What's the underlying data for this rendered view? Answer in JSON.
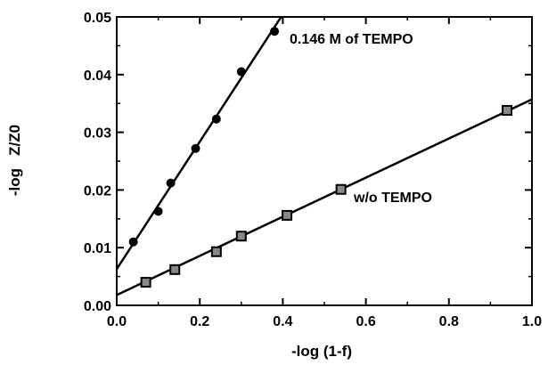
{
  "chart_data": {
    "type": "scatter",
    "xlabel": "-log (1-f)",
    "ylabel": "-log   Z/Z0",
    "xlim": [
      0.0,
      1.0
    ],
    "ylim": [
      0.0,
      0.05
    ],
    "xticks": [
      "0.0",
      "0.2",
      "0.4",
      "0.6",
      "0.8",
      "1.0"
    ],
    "yticks": [
      "0.00",
      "0.01",
      "0.02",
      "0.03",
      "0.04",
      "0.05"
    ],
    "grid": false,
    "series": [
      {
        "name": "0.146 M of TEMPO",
        "marker": "circle",
        "x": [
          0.04,
          0.1,
          0.13,
          0.19,
          0.24,
          0.3,
          0.38
        ],
        "y": [
          0.011,
          0.0163,
          0.0212,
          0.0272,
          0.0323,
          0.0405,
          0.0475
        ],
        "fit": {
          "x": [
            0.0,
            0.396
          ],
          "y": [
            0.0063,
            0.05
          ]
        }
      },
      {
        "name": "w/o TEMPO",
        "marker": "square",
        "x": [
          0.07,
          0.14,
          0.24,
          0.3,
          0.41,
          0.54,
          0.94
        ],
        "y": [
          0.004,
          0.0062,
          0.0093,
          0.012,
          0.0156,
          0.0201,
          0.0338
        ],
        "fit": {
          "x": [
            0.0,
            1.0
          ],
          "y": [
            0.0018,
            0.0357
          ]
        }
      }
    ]
  }
}
